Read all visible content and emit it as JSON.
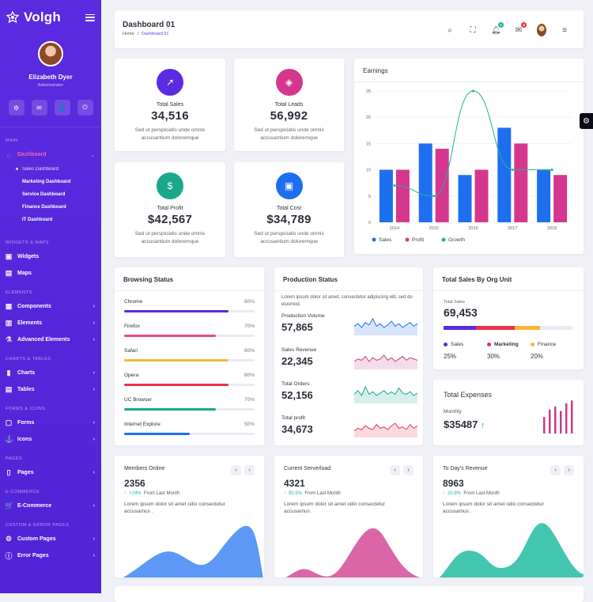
{
  "brand": {
    "name": "Volgh"
  },
  "profile": {
    "name": "Elizabeth Dyer",
    "role": "Administrator"
  },
  "sidebar": {
    "main_label": "MAIN",
    "dashboard": "Dashboard",
    "subs": [
      "Sales Dashboard",
      "Marketing Dashboard",
      "Service Dashboard",
      "Finance Dashboard",
      "IT Dashboard"
    ],
    "sections": [
      {
        "label": "WIDGETS & MAPS",
        "items": [
          "Widgets",
          "Maps"
        ]
      },
      {
        "label": "ELEMENTS",
        "items": [
          "Components",
          "Elements",
          "Advanced Elements"
        ]
      },
      {
        "label": "CHARTS & TABLES",
        "items": [
          "Charts",
          "Tables"
        ]
      },
      {
        "label": "FORMS & ICONS",
        "items": [
          "Forms",
          "Icons"
        ]
      },
      {
        "label": "PAGES",
        "items": [
          "Pages"
        ]
      },
      {
        "label": "E-COMMERCE",
        "items": [
          "E-Commerce"
        ]
      },
      {
        "label": "CUSTOM & ERROR PAGES",
        "items": [
          "Custom Pages",
          "Error Pages"
        ]
      }
    ]
  },
  "header": {
    "title": "Dashboard 01",
    "crumb_home": "Home",
    "crumb_sep": "/",
    "crumb_current": "Dashboard 01",
    "notif_count": "2",
    "mail_count": "3"
  },
  "stats": [
    {
      "label": "Total Sales",
      "value": "34,516",
      "desc": "Sed ut perspiciatis unde omnis accusantium doloremque",
      "color": "#5b2be0"
    },
    {
      "label": "Total Leads",
      "value": "56,992",
      "desc": "Sed ut perspiciatis unde omnis accusantium doloremque",
      "color": "#d6378e"
    },
    {
      "label": "Total Profit",
      "value": "$42,567",
      "desc": "Sed ut perspiciatis unde omnis accusantium doloremque",
      "color": "#1aa88a"
    },
    {
      "label": "Total Cost",
      "value": "$34,789",
      "desc": "Sed ut perspiciatis unde omnis accusantium doloremque",
      "color": "#1e6ff0"
    }
  ],
  "earnings": {
    "title": "Earnings"
  },
  "chart_data": {
    "type": "bar",
    "categories": [
      "2014",
      "2015",
      "2016",
      "2017",
      "2018"
    ],
    "series": [
      {
        "name": "Sales",
        "values": [
          10,
          15,
          9,
          18,
          10
        ],
        "color": "#1e6ff0"
      },
      {
        "name": "Profit",
        "values": [
          10,
          14,
          10,
          15,
          9
        ],
        "color": "#d6378e"
      },
      {
        "name": "Growth",
        "type": "line",
        "values": [
          7,
          5,
          25,
          10,
          10
        ],
        "color": "#1fb592"
      }
    ],
    "ylim": [
      0,
      25
    ],
    "yticks": [
      0,
      5,
      10,
      15,
      20,
      25
    ],
    "legend_position": "bottom-left",
    "grid": true
  },
  "browsing": {
    "title": "Browsing Status",
    "items": [
      {
        "name": "Chrome",
        "pct": "80%",
        "value": 0.8,
        "color": "#5b2be0"
      },
      {
        "name": "Firefox",
        "pct": "70%",
        "value": 0.7,
        "color": "#e84a7f"
      },
      {
        "name": "Safari",
        "pct": "80%",
        "value": 0.8,
        "color": "#f5b73b"
      },
      {
        "name": "Opera",
        "pct": "80%",
        "value": 0.8,
        "color": "#e8334a"
      },
      {
        "name": "UC Browser",
        "pct": "70%",
        "value": 0.7,
        "color": "#1aa88a"
      },
      {
        "name": "Internet Explore",
        "pct": "50%",
        "value": 0.5,
        "color": "#1e6ff0"
      }
    ]
  },
  "production": {
    "title": "Production Status",
    "intro": "Lorem ipsum dolor sit amet, consectetur adipiscing elit, sed do eiusmod.",
    "items": [
      {
        "label": "Production Volume",
        "value": "57,865",
        "color": "#1e6ff0"
      },
      {
        "label": "Sales Revenue",
        "value": "22,345",
        "color": "#c73c8a"
      },
      {
        "label": "Total Orders",
        "value": "52,156",
        "color": "#1aa88a"
      },
      {
        "label": "Total profit",
        "value": "34,673",
        "color": "#e8334a"
      }
    ]
  },
  "org_sales": {
    "title": "Total Sales By Org Unit",
    "label": "Total Sales",
    "value": "69,453",
    "segments": [
      {
        "name": "Sales",
        "pct": "25%",
        "value": 0.25,
        "color": "#5b2be0"
      },
      {
        "name": "Marketing",
        "pct": "30%",
        "value": 0.3,
        "color": "#e8334a"
      },
      {
        "name": "Finance",
        "pct": "20%",
        "value": 0.2,
        "color": "#f5b73b"
      }
    ]
  },
  "expenses": {
    "title": "Total Expenses",
    "label": "Monthly",
    "value": "$35487",
    "bars": [
      0.55,
      0.8,
      0.9,
      0.75,
      1.0,
      1.1
    ]
  },
  "bottom_cards": [
    {
      "title": "Members Online",
      "value": "2356",
      "delta": "+24%",
      "period": "From Last Month",
      "desc": "Lorem ipsum dolor sit amet odio consectetur accusamus .",
      "color": "#4c8df6"
    },
    {
      "title": "Current Serverload",
      "value": "4321",
      "delta": "90.5%",
      "period": "From Last Month",
      "desc": "Lorem ipsum dolor sit amet odio consectetur accusamus .",
      "color": "#d6559e"
    },
    {
      "title": "To Day's Revenue",
      "value": "8963",
      "delta": "20.8%",
      "period": "From Last Month",
      "desc": "Lorem ipsum dolor sit amet odio consectetur accusamus .",
      "color": "#30c0a8"
    }
  ]
}
